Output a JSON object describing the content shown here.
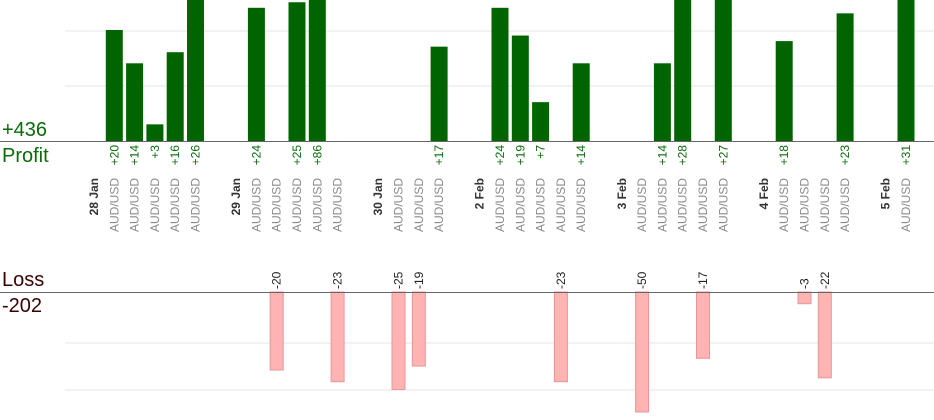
{
  "summary": {
    "profit_total": "+436",
    "profit_label": "Profit",
    "loss_label": "Loss",
    "loss_total": "-202"
  },
  "colors": {
    "profit_bar": "#006400",
    "profit_text": "#0a6b0a",
    "loss_bar": "#ffb3b3",
    "loss_bar_stroke": "#e89696",
    "grid": "#e6e6e6",
    "axis": "#666666"
  },
  "chart_data": {
    "type": "bar",
    "title": "",
    "xlabel": "",
    "ylabel": "",
    "grid": true,
    "profit_ylim": [
      0,
      28
    ],
    "loss_ylim": [
      -27,
      0
    ],
    "slots": [
      {
        "kind": "date",
        "label": "28 Jan"
      },
      {
        "kind": "trade",
        "pair": "AUD/USD",
        "value": 20,
        "label": "+20"
      },
      {
        "kind": "trade",
        "pair": "AUD/USD",
        "value": 14,
        "label": "+14"
      },
      {
        "kind": "trade",
        "pair": "AUD/USD",
        "value": 3,
        "label": "+3"
      },
      {
        "kind": "trade",
        "pair": "AUD/USD",
        "value": 16,
        "label": "+16"
      },
      {
        "kind": "trade",
        "pair": "AUD/USD",
        "value": 26,
        "label": "+26"
      },
      {
        "kind": "gap"
      },
      {
        "kind": "date",
        "label": "29 Jan"
      },
      {
        "kind": "trade",
        "pair": "AUD/USD",
        "value": 24,
        "label": "+24"
      },
      {
        "kind": "trade",
        "pair": "AUD/USD",
        "value": -20,
        "label": "-20"
      },
      {
        "kind": "trade",
        "pair": "AUD/USD",
        "value": 25,
        "label": "+25"
      },
      {
        "kind": "trade",
        "pair": "AUD/USD",
        "value": 86,
        "label": "+86"
      },
      {
        "kind": "trade",
        "pair": "AUD/USD",
        "value": -23,
        "label": "-23"
      },
      {
        "kind": "gap"
      },
      {
        "kind": "date",
        "label": "30 Jan"
      },
      {
        "kind": "trade",
        "pair": "AUD/USD",
        "value": -25,
        "label": "-25"
      },
      {
        "kind": "trade",
        "pair": "AUD/USD",
        "value": -19,
        "label": "-19"
      },
      {
        "kind": "trade",
        "pair": "AUD/USD",
        "value": 17,
        "label": "+17"
      },
      {
        "kind": "gap"
      },
      {
        "kind": "date",
        "label": "2 Feb"
      },
      {
        "kind": "trade",
        "pair": "AUD/USD",
        "value": 24,
        "label": "+24"
      },
      {
        "kind": "trade",
        "pair": "AUD/USD",
        "value": 19,
        "label": "+19"
      },
      {
        "kind": "trade",
        "pair": "AUD/USD",
        "value": 7,
        "label": "+7"
      },
      {
        "kind": "trade",
        "pair": "AUD/USD",
        "value": -23,
        "label": "-23"
      },
      {
        "kind": "trade",
        "pair": "AUD/USD",
        "value": 14,
        "label": "+14"
      },
      {
        "kind": "gap"
      },
      {
        "kind": "date",
        "label": "3 Feb"
      },
      {
        "kind": "trade",
        "pair": "AUD/USD",
        "value": -50,
        "label": "-50"
      },
      {
        "kind": "trade",
        "pair": "AUD/USD",
        "value": 14,
        "label": "+14"
      },
      {
        "kind": "trade",
        "pair": "AUD/USD",
        "value": 28,
        "label": "+28"
      },
      {
        "kind": "trade",
        "pair": "AUD/USD",
        "value": -17,
        "label": "-17"
      },
      {
        "kind": "trade",
        "pair": "AUD/USD",
        "value": 27,
        "label": "+27"
      },
      {
        "kind": "gap"
      },
      {
        "kind": "date",
        "label": "4 Feb"
      },
      {
        "kind": "trade",
        "pair": "AUD/USD",
        "value": 18,
        "label": "+18"
      },
      {
        "kind": "trade",
        "pair": "AUD/USD",
        "value": -3,
        "label": "-3"
      },
      {
        "kind": "trade",
        "pair": "AUD/USD",
        "value": -22,
        "label": "-22"
      },
      {
        "kind": "trade",
        "pair": "AUD/USD",
        "value": 23,
        "label": "+23"
      },
      {
        "kind": "gap"
      },
      {
        "kind": "date",
        "label": "5 Feb"
      },
      {
        "kind": "trade",
        "pair": "AUD/USD",
        "value": 31,
        "label": "+31"
      }
    ]
  }
}
